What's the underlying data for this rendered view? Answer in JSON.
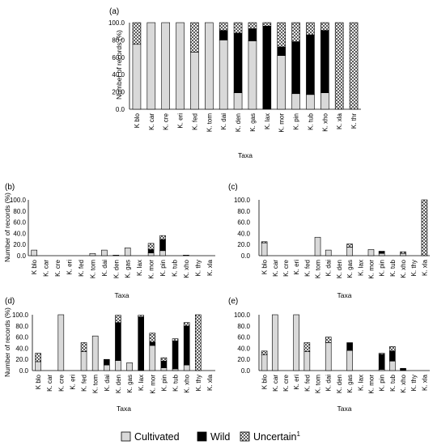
{
  "legend": {
    "cultivated_label": "Cultivated",
    "wild_label": "Wild",
    "uncertain_label": "Uncertain",
    "uncertain_superscript": "1"
  },
  "colors": {
    "cultivated": "#d9d9d9",
    "wild": "#000000",
    "uncertain_pattern": "crosshatch",
    "edge": "#000000"
  },
  "chart_data": [
    {
      "panel_label": "(a)",
      "type": "bar",
      "stacked": true,
      "ylabel": "Number of records (%)",
      "xlabel": "Taxa",
      "ylim": [
        0,
        100
      ],
      "yticks": [
        "0.0",
        "20.0",
        "40.0",
        "60.0",
        "80.0",
        "100.0"
      ],
      "categories": [
        "K blo",
        "K. car",
        "K. cre",
        "K. eri",
        "K. fed",
        "K. tom",
        "K. dai",
        "K. den",
        "K. gas",
        "K. lax",
        "K. mor",
        "K. pin",
        "K. tub",
        "K. xho",
        "K. xla",
        "K. thr"
      ],
      "series": [
        {
          "name": "Cultivated",
          "values": [
            75,
            100,
            100,
            100,
            66,
            100,
            80,
            19,
            79,
            0,
            62,
            18,
            17,
            19,
            0,
            0
          ]
        },
        {
          "name": "Wild",
          "values": [
            0,
            0,
            0,
            0,
            0,
            0,
            11,
            69,
            14,
            96,
            10,
            60,
            69,
            72,
            0,
            0
          ]
        },
        {
          "name": "Uncertain",
          "values": [
            25,
            0,
            0,
            0,
            34,
            0,
            9,
            12,
            7,
            4,
            28,
            22,
            14,
            9,
            100,
            100
          ]
        }
      ]
    },
    {
      "panel_label": "(b)",
      "type": "bar",
      "stacked": true,
      "ylabel": "Number of records (%)",
      "xlabel": "Taxa",
      "ylim": [
        0,
        100
      ],
      "yticks": [
        "0.0",
        "20.0",
        "40.0",
        "60.0",
        "80.0",
        "100.0"
      ],
      "categories": [
        "K blo",
        "K. car",
        "K. cre",
        "K. eri",
        "K. fed",
        "K. tom",
        "K. dai",
        "K. den",
        "K. gas",
        "K. lax",
        "K. mor",
        "K. pin",
        "K. tub",
        "K. xho",
        "K. thy",
        "K. xla"
      ],
      "series": [
        {
          "name": "Cultivated",
          "values": [
            10,
            0,
            0,
            0,
            0,
            4,
            10,
            1,
            14,
            0,
            5,
            9,
            0,
            0,
            0,
            0
          ]
        },
        {
          "name": "Wild",
          "values": [
            0,
            0,
            0,
            0,
            0,
            0,
            0,
            0,
            0,
            0,
            6,
            20,
            0,
            0,
            0,
            0
          ]
        },
        {
          "name": "Uncertain",
          "values": [
            0,
            0,
            0,
            0,
            0,
            0,
            0,
            0,
            0,
            0,
            11,
            7,
            0,
            1,
            0,
            0
          ]
        }
      ]
    },
    {
      "panel_label": "(c)",
      "type": "bar",
      "stacked": true,
      "ylabel": "",
      "xlabel": "Taxa",
      "ylim": [
        0,
        100
      ],
      "yticks": [
        "0.0",
        "20.0",
        "40.0",
        "60.0",
        "80.0",
        "100.0"
      ],
      "categories": [
        "K blo",
        "K. car",
        "K. cre",
        "K. eri",
        "K. fed",
        "K. tom",
        "K. dai",
        "K. den",
        "K. gas",
        "K. lax",
        "K. mor",
        "K. pin",
        "K. tub",
        "K. xho",
        "K. thy",
        "K. xla"
      ],
      "series": [
        {
          "name": "Cultivated",
          "values": [
            23,
            0,
            0,
            0,
            0,
            33,
            10,
            0,
            15,
            0,
            11,
            4,
            0,
            4,
            0,
            0
          ]
        },
        {
          "name": "Wild",
          "values": [
            0,
            0,
            0,
            0,
            0,
            0,
            0,
            0,
            0,
            0,
            0,
            3,
            0,
            0,
            0,
            0
          ]
        },
        {
          "name": "Uncertain",
          "values": [
            2,
            0,
            0,
            0,
            0,
            0,
            0,
            0,
            6,
            0,
            0,
            1,
            0,
            3,
            0,
            100
          ]
        }
      ]
    },
    {
      "panel_label": "(d)",
      "type": "bar",
      "stacked": true,
      "ylabel": "Number of records (%)",
      "xlabel": "Taxa",
      "ylim": [
        0,
        100
      ],
      "yticks": [
        "0.0",
        "20.0",
        "40.0",
        "60.0",
        "80.0",
        "100.0"
      ],
      "categories": [
        "K blo",
        "K. car",
        "K. cre",
        "K. eri",
        "K. fed",
        "K. tom",
        "K. dai",
        "K. den",
        "K. gas",
        "K. lax",
        "K. mor",
        "K. pin",
        "K. tub",
        "K. xho",
        "K. thy",
        "K. xla"
      ],
      "series": [
        {
          "name": "Cultivated",
          "values": [
            16,
            0,
            100,
            0,
            34,
            62,
            10,
            18,
            14,
            0,
            45,
            5,
            3,
            10,
            0,
            0
          ]
        },
        {
          "name": "Wild",
          "values": [
            0,
            0,
            0,
            0,
            0,
            0,
            10,
            68,
            0,
            96,
            6,
            12,
            50,
            70,
            0,
            0
          ]
        },
        {
          "name": "Uncertain",
          "values": [
            15,
            0,
            0,
            0,
            16,
            0,
            0,
            13,
            0,
            3,
            16,
            6,
            4,
            6,
            100,
            0
          ]
        }
      ]
    },
    {
      "panel_label": "(e)",
      "type": "bar",
      "stacked": true,
      "ylabel": "",
      "xlabel": "Taxa",
      "ylim": [
        0,
        100
      ],
      "yticks": [
        "0.0",
        "20.0",
        "40.0",
        "60.0",
        "80.0",
        "100.0"
      ],
      "categories": [
        "K blo",
        "K. car",
        "K. cre",
        "K. eri",
        "K. fed",
        "K. tom",
        "K. dai",
        "K. den",
        "K. gas",
        "K. lax",
        "K. mor",
        "K. pin",
        "K. tub",
        "K. xho",
        "K. thy",
        "K. xla"
      ],
      "series": [
        {
          "name": "Cultivated",
          "values": [
            28,
            100,
            0,
            100,
            34,
            0,
            50,
            0,
            36,
            0,
            0,
            2,
            17,
            0,
            0,
            0
          ]
        },
        {
          "name": "Wild",
          "values": [
            0,
            0,
            0,
            0,
            0,
            0,
            0,
            0,
            14,
            0,
            0,
            27,
            18,
            4,
            0,
            0
          ]
        },
        {
          "name": "Uncertain",
          "values": [
            7,
            0,
            0,
            0,
            16,
            0,
            10,
            0,
            0,
            0,
            0,
            2,
            8,
            0,
            0,
            0
          ]
        }
      ]
    }
  ]
}
